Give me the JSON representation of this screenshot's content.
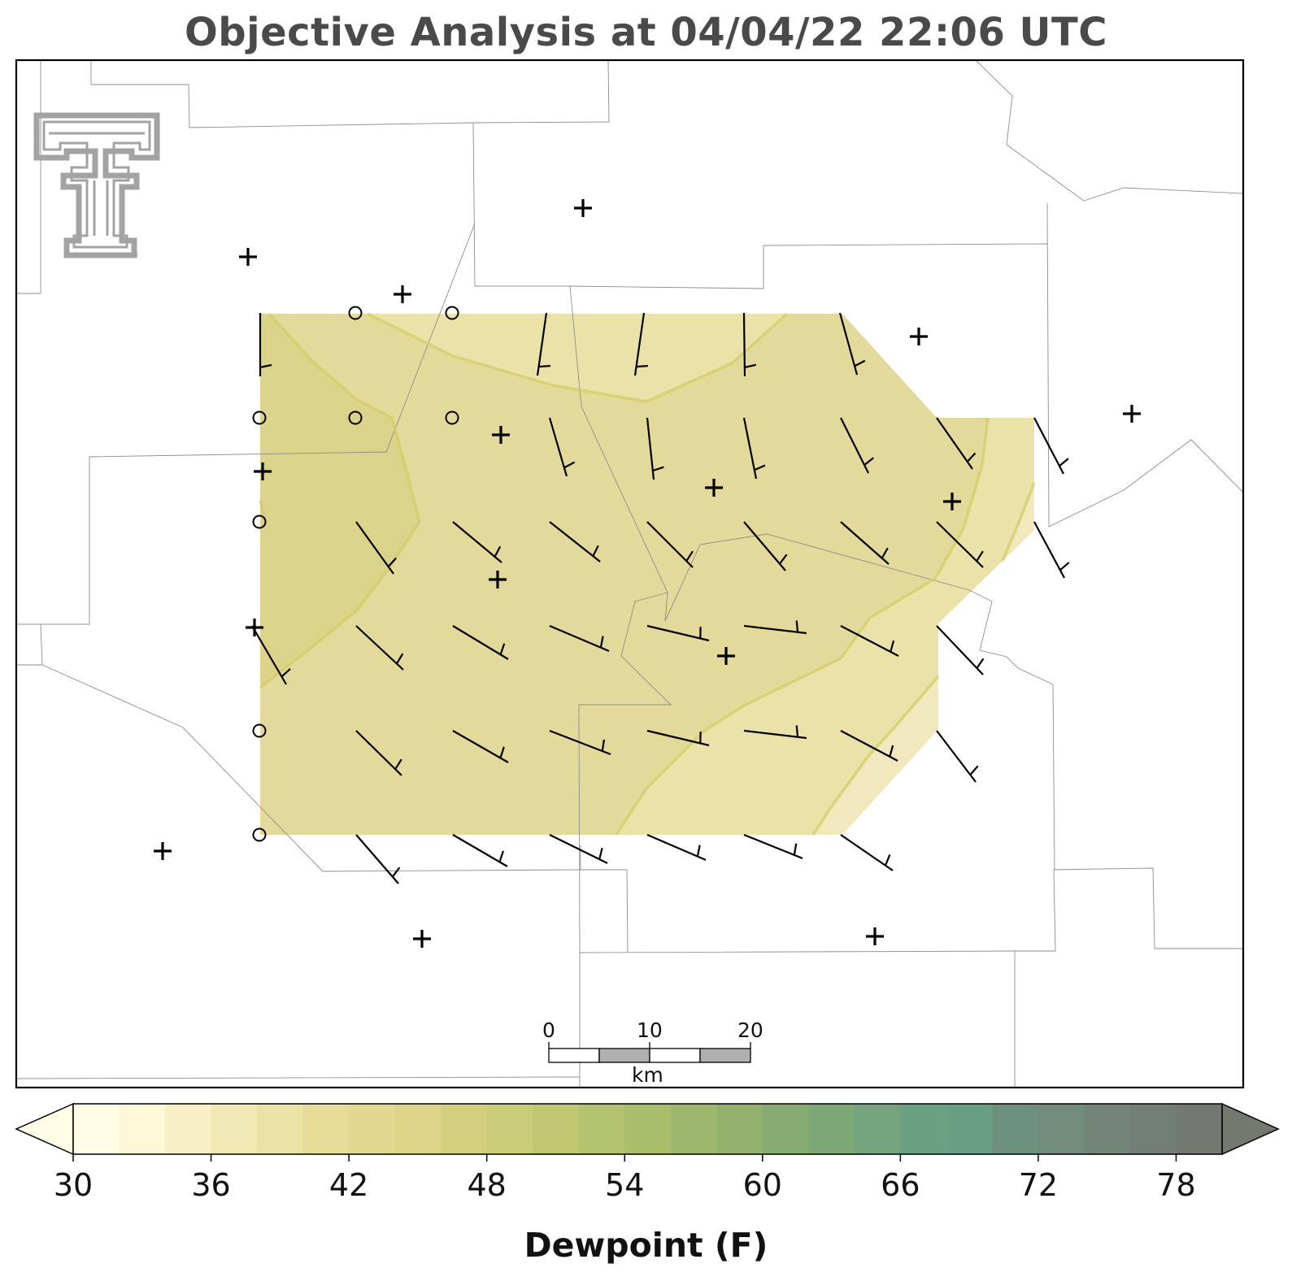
{
  "title": "Objective Analysis at 04/04/22 22:06 UTC",
  "logo": {
    "icon": "texas-tech-double-t-logo",
    "mark": "®"
  },
  "colorbar": {
    "label": "Dewpoint (F)",
    "tick_labels": [
      "30",
      "36",
      "42",
      "48",
      "54",
      "60",
      "66",
      "72",
      "78"
    ],
    "levels_min": 30,
    "levels_max": 80,
    "level_step": 2,
    "extend": "both",
    "colors": [
      "#fffce6",
      "#fcf7d6",
      "#f7f0c6",
      "#f1e9b4",
      "#ebe2a6",
      "#e6dc98",
      "#e2d78f",
      "#dcd387",
      "#d4cf7f",
      "#cacd77",
      "#bfc871",
      "#b3c36d",
      "#a8be6b",
      "#9db76c",
      "#92b26e",
      "#86ac72",
      "#7ca876",
      "#74a37c",
      "#6ba182",
      "#689e84",
      "#6c8f7e",
      "#728c7c",
      "#738479",
      "#737e76",
      "#737870"
    ],
    "under_color": "#fffce6",
    "over_color": "#727a70"
  },
  "scale_bar": {
    "labels": [
      "0",
      "10",
      "20"
    ],
    "unit": "km"
  },
  "analysis": {
    "variable": "Dewpoint",
    "units": "F",
    "shading_levels_present": [
      "38-40",
      "40-42",
      "42-44"
    ],
    "colors": {
      "38-40": "#ebe2a6",
      "40-42": "#e2d98f",
      "42-44": "#dcd38a"
    },
    "contour_line_color": "#d8cd6a"
  },
  "station_plot": {
    "plus_count": 20,
    "calm_circle_count": 9,
    "wind_barb_count": 56
  }
}
